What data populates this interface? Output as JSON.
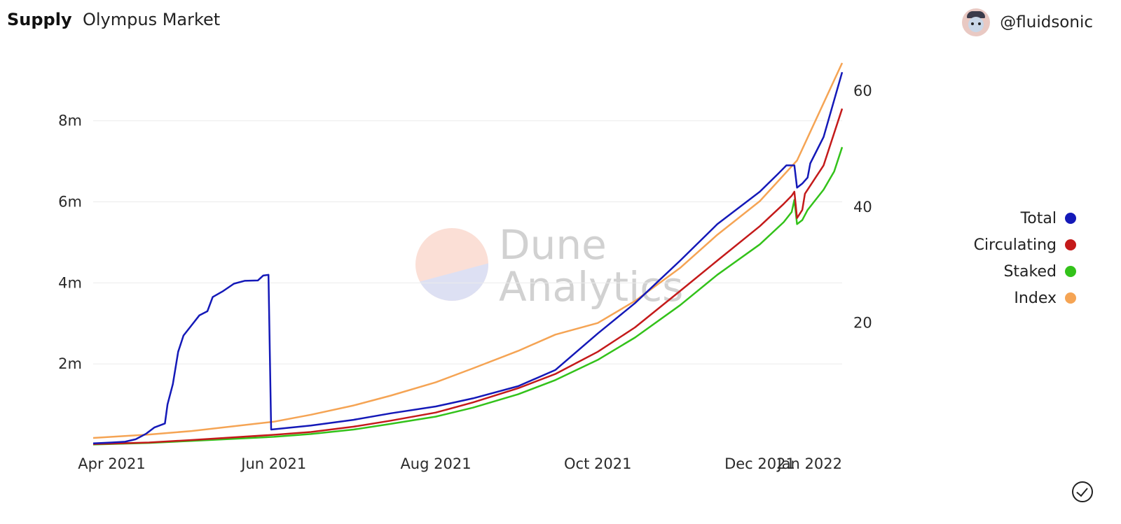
{
  "header": {
    "title": "Supply",
    "subtitle": "Olympus Market"
  },
  "author": {
    "handle": "@fluidsonic",
    "avatar_icon": "avatar-icon"
  },
  "watermark": {
    "line1": "Dune",
    "line2": "Analytics"
  },
  "status_icon": "check-circle-icon",
  "chart_data": {
    "type": "line",
    "title": "Supply",
    "xlabel": "",
    "ylabel": "",
    "y2label": "",
    "x_ticks": [
      "Apr 2021",
      "Jun 2021",
      "Aug 2021",
      "Oct 2021",
      "Dec 2021",
      "Jan 2022"
    ],
    "x_tick_dates": [
      "2021-04-01",
      "2021-06-01",
      "2021-08-01",
      "2021-10-01",
      "2021-12-01",
      "2022-01-01"
    ],
    "x_range": [
      "2021-03-25",
      "2022-01-01"
    ],
    "y_left": {
      "range": [
        0,
        9600000
      ],
      "ticks": [
        2000000,
        4000000,
        6000000,
        8000000
      ],
      "tick_labels": [
        "2m",
        "4m",
        "6m",
        "8m"
      ]
    },
    "y_right": {
      "range": [
        -1,
        66
      ],
      "ticks": [
        20,
        40,
        60
      ],
      "tick_labels": [
        "20",
        "40",
        "60"
      ]
    },
    "grid": true,
    "legend_position": "right",
    "series": [
      {
        "name": "Total",
        "axis": "left",
        "color": "#1419b8",
        "points": [
          [
            "2021-03-25",
            40000
          ],
          [
            "2021-04-01",
            60000
          ],
          [
            "2021-04-06",
            80000
          ],
          [
            "2021-04-10",
            140000
          ],
          [
            "2021-04-14",
            280000
          ],
          [
            "2021-04-17",
            430000
          ],
          [
            "2021-04-21",
            530000
          ],
          [
            "2021-04-22",
            1000000
          ],
          [
            "2021-04-24",
            1500000
          ],
          [
            "2021-04-26",
            2300000
          ],
          [
            "2021-04-28",
            2700000
          ],
          [
            "2021-05-01",
            2950000
          ],
          [
            "2021-05-04",
            3200000
          ],
          [
            "2021-05-07",
            3300000
          ],
          [
            "2021-05-09",
            3650000
          ],
          [
            "2021-05-13",
            3800000
          ],
          [
            "2021-05-17",
            3980000
          ],
          [
            "2021-05-21",
            4050000
          ],
          [
            "2021-05-26",
            4060000
          ],
          [
            "2021-05-28",
            4180000
          ],
          [
            "2021-05-30",
            4200000
          ],
          [
            "2021-05-31",
            380000
          ],
          [
            "2021-06-15",
            480000
          ],
          [
            "2021-07-01",
            620000
          ],
          [
            "2021-07-15",
            780000
          ],
          [
            "2021-08-01",
            950000
          ],
          [
            "2021-08-15",
            1150000
          ],
          [
            "2021-09-01",
            1450000
          ],
          [
            "2021-09-15",
            1850000
          ],
          [
            "2021-10-01",
            2750000
          ],
          [
            "2021-10-15",
            3500000
          ],
          [
            "2021-11-01",
            4550000
          ],
          [
            "2021-11-15",
            5450000
          ],
          [
            "2021-12-01",
            6250000
          ],
          [
            "2021-12-08",
            6700000
          ],
          [
            "2021-12-11",
            6900000
          ],
          [
            "2021-12-14",
            6900000
          ],
          [
            "2021-12-15",
            6350000
          ],
          [
            "2021-12-17",
            6450000
          ],
          [
            "2021-12-19",
            6600000
          ],
          [
            "2021-12-20",
            6950000
          ],
          [
            "2021-12-25",
            7600000
          ],
          [
            "2022-01-01",
            9200000
          ]
        ]
      },
      {
        "name": "Circulating",
        "axis": "left",
        "color": "#c41a1a",
        "points": [
          [
            "2021-03-25",
            20000
          ],
          [
            "2021-04-15",
            60000
          ],
          [
            "2021-05-01",
            120000
          ],
          [
            "2021-06-01",
            250000
          ],
          [
            "2021-06-15",
            320000
          ],
          [
            "2021-07-01",
            450000
          ],
          [
            "2021-07-15",
            600000
          ],
          [
            "2021-08-01",
            800000
          ],
          [
            "2021-08-15",
            1050000
          ],
          [
            "2021-09-01",
            1400000
          ],
          [
            "2021-09-15",
            1750000
          ],
          [
            "2021-10-01",
            2300000
          ],
          [
            "2021-10-15",
            2900000
          ],
          [
            "2021-11-01",
            3800000
          ],
          [
            "2021-11-15",
            4550000
          ],
          [
            "2021-12-01",
            5400000
          ],
          [
            "2021-12-10",
            5950000
          ],
          [
            "2021-12-13",
            6150000
          ],
          [
            "2021-12-14",
            6250000
          ],
          [
            "2021-12-15",
            5600000
          ],
          [
            "2021-12-17",
            5800000
          ],
          [
            "2021-12-18",
            6200000
          ],
          [
            "2021-12-25",
            6900000
          ],
          [
            "2022-01-01",
            8300000
          ]
        ]
      },
      {
        "name": "Staked",
        "axis": "left",
        "color": "#33c21a",
        "points": [
          [
            "2021-03-25",
            10000
          ],
          [
            "2021-04-15",
            50000
          ],
          [
            "2021-05-01",
            100000
          ],
          [
            "2021-06-01",
            200000
          ],
          [
            "2021-06-15",
            270000
          ],
          [
            "2021-07-01",
            380000
          ],
          [
            "2021-07-15",
            520000
          ],
          [
            "2021-08-01",
            700000
          ],
          [
            "2021-08-15",
            920000
          ],
          [
            "2021-09-01",
            1250000
          ],
          [
            "2021-09-15",
            1600000
          ],
          [
            "2021-10-01",
            2100000
          ],
          [
            "2021-10-15",
            2650000
          ],
          [
            "2021-11-01",
            3450000
          ],
          [
            "2021-11-15",
            4200000
          ],
          [
            "2021-12-01",
            4950000
          ],
          [
            "2021-12-10",
            5500000
          ],
          [
            "2021-12-13",
            5750000
          ],
          [
            "2021-12-14",
            6050000
          ],
          [
            "2021-12-15",
            5450000
          ],
          [
            "2021-12-17",
            5550000
          ],
          [
            "2021-12-19",
            5800000
          ],
          [
            "2021-12-25",
            6300000
          ],
          [
            "2021-12-29",
            6750000
          ],
          [
            "2022-01-01",
            7350000
          ]
        ]
      },
      {
        "name": "Index",
        "axis": "right",
        "color": "#f5a454",
        "points": [
          [
            "2021-03-25",
            0.2
          ],
          [
            "2021-04-15",
            0.8
          ],
          [
            "2021-05-01",
            1.4
          ],
          [
            "2021-06-01",
            3.0
          ],
          [
            "2021-06-15",
            4.2
          ],
          [
            "2021-07-01",
            5.8
          ],
          [
            "2021-07-15",
            7.5
          ],
          [
            "2021-08-01",
            9.8
          ],
          [
            "2021-08-15",
            12.2
          ],
          [
            "2021-09-01",
            15.2
          ],
          [
            "2021-09-15",
            18.0
          ],
          [
            "2021-10-01",
            20.0
          ],
          [
            "2021-10-15",
            23.8
          ],
          [
            "2021-11-01",
            29.5
          ],
          [
            "2021-11-15",
            35.2
          ],
          [
            "2021-12-01",
            41.0
          ],
          [
            "2021-12-15",
            48.0
          ],
          [
            "2022-01-01",
            64.8
          ]
        ]
      }
    ]
  }
}
